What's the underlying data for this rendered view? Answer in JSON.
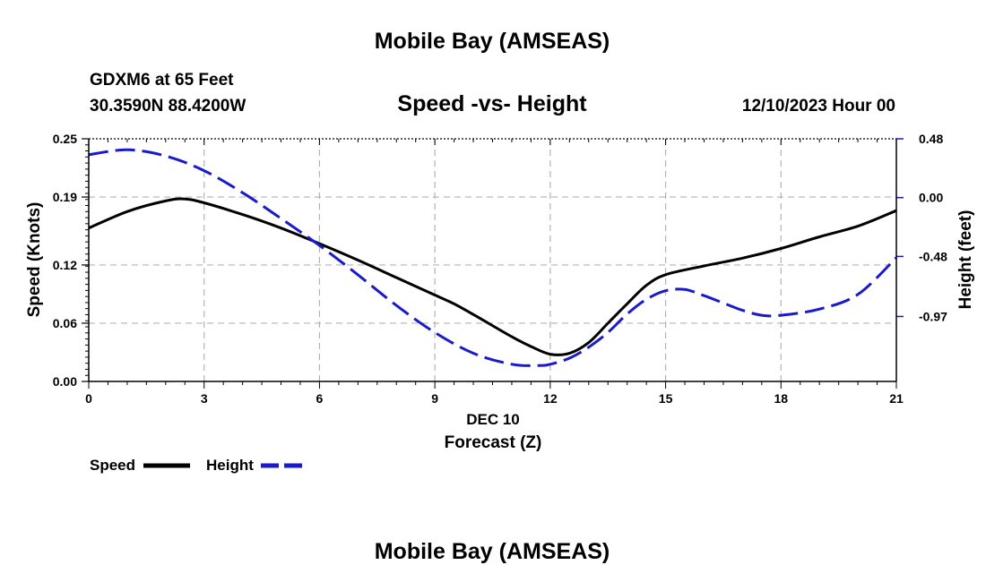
{
  "page": {
    "title_top": "Mobile Bay (AMSEAS)",
    "title_bottom": "Mobile Bay (AMSEAS)",
    "station_line": "GDXM6 at 65 Feet",
    "coords_line": "30.3590N  88.4200W",
    "plot_title": "Speed -vs- Height",
    "date_line": "12/10/2023 Hour 00"
  },
  "chart_data": {
    "type": "line",
    "title": "Speed -vs- Height",
    "xlabel": "Forecast (Z)",
    "xlabel_date": "DEC 10",
    "ylabel": "Speed (Knots)",
    "y2label": "Height (feet)",
    "xlim": [
      0,
      21
    ],
    "ylim": [
      0,
      0.25
    ],
    "y2lim": [
      -1.5,
      0.48
    ],
    "grid": true,
    "x_ticks": [
      "0",
      "3",
      "6",
      "9",
      "12",
      "15",
      "18",
      "21"
    ],
    "y_ticks": [
      "0.00",
      "0.06",
      "0.12",
      "0.19",
      "0.25"
    ],
    "y2_ticks": [
      "0.48",
      "0.00",
      "-0.48",
      "-0.97"
    ],
    "legend": [
      "Speed",
      "Height"
    ],
    "series": [
      {
        "name": "Speed",
        "axis": "left",
        "color": "#000000",
        "x": [
          0,
          1,
          2,
          2.5,
          3,
          4,
          5,
          6,
          7,
          8,
          9,
          9.5,
          10,
          11,
          11.5,
          12,
          12.5,
          13,
          13.5,
          14,
          14.5,
          15,
          16,
          17,
          18,
          19,
          20,
          21
        ],
        "values": [
          0.158,
          0.175,
          0.186,
          0.188,
          0.184,
          0.172,
          0.158,
          0.142,
          0.125,
          0.107,
          0.089,
          0.08,
          0.069,
          0.046,
          0.036,
          0.028,
          0.029,
          0.04,
          0.06,
          0.08,
          0.099,
          0.11,
          0.119,
          0.127,
          0.137,
          0.149,
          0.16,
          0.176
        ]
      },
      {
        "name": "Height",
        "axis": "right",
        "color": "#1a1acc",
        "x": [
          0,
          1,
          2,
          3,
          4,
          5,
          6,
          7,
          8,
          9,
          10,
          11,
          11.7,
          12,
          12.5,
          13,
          13.5,
          14,
          14.5,
          15,
          15.5,
          16,
          16.5,
          17,
          17.5,
          18,
          19,
          20,
          21
        ],
        "values": [
          0.35,
          0.39,
          0.34,
          0.22,
          0.04,
          -0.17,
          -0.39,
          -0.63,
          -0.88,
          -1.1,
          -1.27,
          -1.36,
          -1.37,
          -1.36,
          -1.31,
          -1.22,
          -1.1,
          -0.95,
          -0.83,
          -0.76,
          -0.75,
          -0.8,
          -0.86,
          -0.92,
          -0.96,
          -0.96,
          -0.91,
          -0.79,
          -0.49
        ]
      }
    ]
  }
}
